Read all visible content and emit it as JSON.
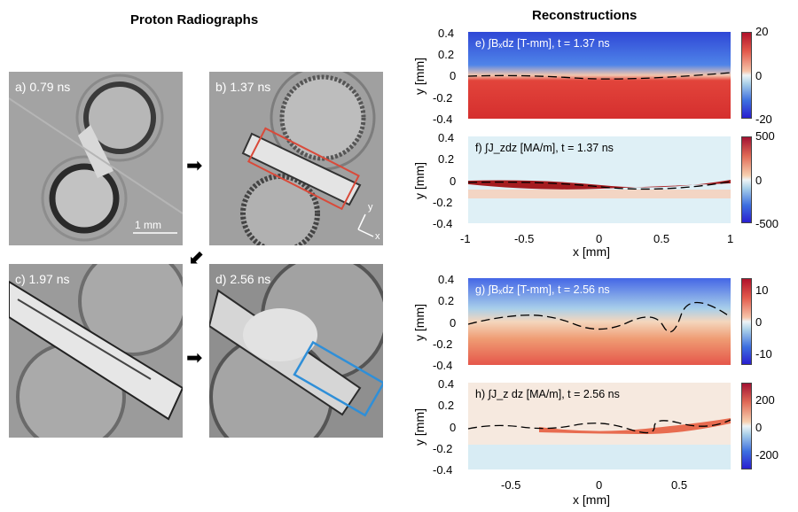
{
  "left_title": "Proton Radiographs",
  "right_title": "Reconstructions",
  "radiographs": [
    {
      "label": "a) 0.79 ns"
    },
    {
      "label": "b) 1.37 ns"
    },
    {
      "label": "c) 1.97 ns"
    },
    {
      "label": "d) 2.56 ns"
    }
  ],
  "scale_bar": "1 mm",
  "axis_tri": {
    "y": "y",
    "x": "x"
  },
  "reconstructions": {
    "e": {
      "label": "e) ∫Bₓdz [T-mm],  t = 1.37 ns",
      "colorbar_ticks": [
        "20",
        "0",
        "-20"
      ]
    },
    "f": {
      "label": "f) ∫J_zdz [MA/m],  t = 1.37 ns",
      "colorbar_ticks": [
        "500",
        "0",
        "-500"
      ]
    },
    "g": {
      "label": "g) ∫Bₓdz [T-mm],  t = 2.56 ns",
      "colorbar_ticks": [
        "10",
        "0",
        "-10"
      ]
    },
    "h": {
      "label": "h) ∫J_z dz [MA/m],  t = 2.56 ns",
      "colorbar_ticks": [
        "200",
        "0",
        "-200"
      ]
    }
  },
  "y_ticks": [
    "0.4",
    "0.2",
    "0",
    "-0.2",
    "-0.4"
  ],
  "ylabel": "y [mm]",
  "xlabel": "x [mm]",
  "x_ticks_top": [
    "-1",
    "-0.5",
    "0",
    "0.5",
    "1"
  ],
  "x_ticks_bottom": [
    "-0.5",
    "0",
    "0.5"
  ],
  "colors": {
    "red": "#d3322f",
    "blue": "#3a63d8",
    "box_red": "#d94a3a",
    "box_blue": "#2f8fd8"
  }
}
